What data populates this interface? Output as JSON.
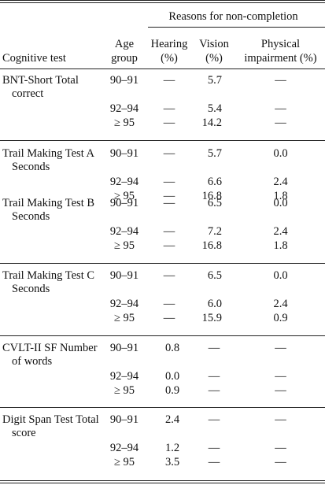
{
  "header": {
    "group_label": "Reasons for non-completion",
    "col_test": "Cognitive test",
    "col_age_1": "Age",
    "col_age_2": "group",
    "col_hearing_1": "Hearing",
    "col_hearing_2": "(%)",
    "col_vision_1": "Vision",
    "col_vision_2": "(%)",
    "col_physical_1": "Physical",
    "col_physical_2": "impairment (%)"
  },
  "dash": "—",
  "tests": [
    {
      "name1": "BNT-Short Total",
      "name2": "correct",
      "rows": [
        {
          "age": "90–91",
          "hearing": "—",
          "vision": "5.7",
          "physical": "—"
        },
        {
          "age": "92–94",
          "hearing": "—",
          "vision": "5.4",
          "physical": "—"
        },
        {
          "age": "≥ 95",
          "hearing": "—",
          "vision": "14.2",
          "physical": "—"
        }
      ]
    },
    {
      "name1": "Trail Making Test A",
      "name2": "Seconds",
      "rows": [
        {
          "age": "90–91",
          "hearing": "—",
          "vision": "5.7",
          "physical": "0.0"
        },
        {
          "age": "92–94",
          "hearing": "—",
          "vision": "6.6",
          "physical": "2.4"
        },
        {
          "age": "≥ 95",
          "hearing": "—",
          "vision": "16.8",
          "physical": "1.8"
        }
      ]
    },
    {
      "name1": "Trail Making Test B",
      "name2": "Seconds",
      "rows": [
        {
          "age": "90–91",
          "hearing": "—",
          "vision": "6.5",
          "physical": "0.0"
        },
        {
          "age": "92–94",
          "hearing": "—",
          "vision": "7.2",
          "physical": "2.4"
        },
        {
          "age": "≥ 95",
          "hearing": "—",
          "vision": "16.8",
          "physical": "1.8"
        }
      ]
    },
    {
      "name1": "Trail Making Test C",
      "name2": "Seconds",
      "rows": [
        {
          "age": "90–91",
          "hearing": "—",
          "vision": "6.5",
          "physical": "0.0"
        },
        {
          "age": "92–94",
          "hearing": "—",
          "vision": "6.0",
          "physical": "2.4"
        },
        {
          "age": "≥ 95",
          "hearing": "—",
          "vision": "15.9",
          "physical": "0.9"
        }
      ]
    },
    {
      "name1": "CVLT-II SF Number",
      "name2": "of words",
      "rows": [
        {
          "age": "90–91",
          "hearing": "0.8",
          "vision": "—",
          "physical": "—"
        },
        {
          "age": "92–94",
          "hearing": "0.0",
          "vision": "—",
          "physical": "—"
        },
        {
          "age": "≥ 95",
          "hearing": "0.9",
          "vision": "—",
          "physical": "—"
        }
      ]
    },
    {
      "name1": "Digit Span Test Total",
      "name2": "score",
      "rows": [
        {
          "age": "90–91",
          "hearing": "2.4",
          "vision": "—",
          "physical": "—"
        },
        {
          "age": "92–94",
          "hearing": "1.2",
          "vision": "—",
          "physical": "—"
        },
        {
          "age": "≥ 95",
          "hearing": "3.5",
          "vision": "—",
          "physical": "—"
        }
      ]
    }
  ]
}
